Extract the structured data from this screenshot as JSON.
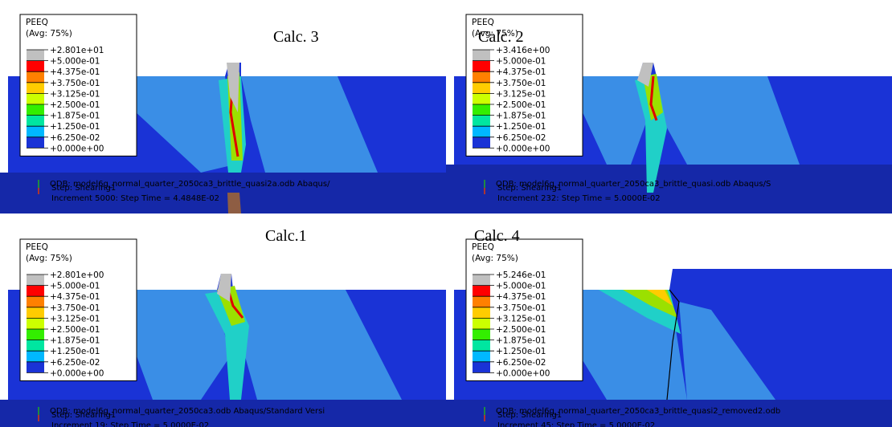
{
  "panels": [
    {
      "title": "Calc. 3",
      "legend": {
        "title": "PEEQ",
        "subtitle": "(Avg: 75%)",
        "values": [
          "+2.801e+01",
          "+5.000e-01",
          "+4.375e-01",
          "+3.750e-01",
          "+3.125e-01",
          "+2.500e-01",
          "+1.875e-01",
          "+1.250e-01",
          "+6.250e-02",
          "+0.000e+00"
        ]
      },
      "info": {
        "odb": "ODB: model6g_normal_quarter_2050ca3_brittle_quasi2a.odb    Abaqus/",
        "step": "Step: Shearing1",
        "increment": "Increment    5000: Step Time =    4.4848E-02"
      }
    },
    {
      "title": "Calc. 2",
      "legend": {
        "title": "PEEQ",
        "subtitle": "(Avg: 75%)",
        "values": [
          "+3.416e+00",
          "+5.000e-01",
          "+4.375e-01",
          "+3.750e-01",
          "+3.125e-01",
          "+2.500e-01",
          "+1.875e-01",
          "+1.250e-01",
          "+6.250e-02",
          "+0.000e+00"
        ]
      },
      "info": {
        "odb": "ODB: model6g_normal_quarter_2050ca3_brittle_quasi.odb    Abaqus/S",
        "step": "Step: Shearing1",
        "increment": "Increment     232: Step Time =    5.0000E-02"
      }
    },
    {
      "title": "Calc.1",
      "legend": {
        "title": "PEEQ",
        "subtitle": "(Avg: 75%)",
        "values": [
          "+2.801e+00",
          "+5.000e-01",
          "+4.375e-01",
          "+3.750e-01",
          "+3.125e-01",
          "+2.500e-01",
          "+1.875e-01",
          "+1.250e-01",
          "+6.250e-02",
          "+0.000e+00"
        ]
      },
      "info": {
        "odb": "ODB: model6g_normal_quarter_2050ca3.odb    Abaqus/Standard Versi",
        "step": "Step: Shearing1",
        "increment": "Increment      19: Step Time =    5.0000E-02"
      }
    },
    {
      "title": "Calc. 4",
      "legend": {
        "title": "PEEQ",
        "subtitle": "(Avg: 75%)",
        "values": [
          "+5.246e-01",
          "+5.000e-01",
          "+4.375e-01",
          "+3.750e-01",
          "+3.125e-01",
          "+2.500e-01",
          "+1.875e-01",
          "+1.250e-01",
          "+6.250e-02",
          "+0.000e+00"
        ]
      },
      "info": {
        "odb": "ODB: model6g_normal_quarter_2050ca3_brittle_quasi2_removed2.odb",
        "step": "Step: Shearing1",
        "increment": "Increment      45: Step Time =    5.0000E-02"
      }
    }
  ]
}
